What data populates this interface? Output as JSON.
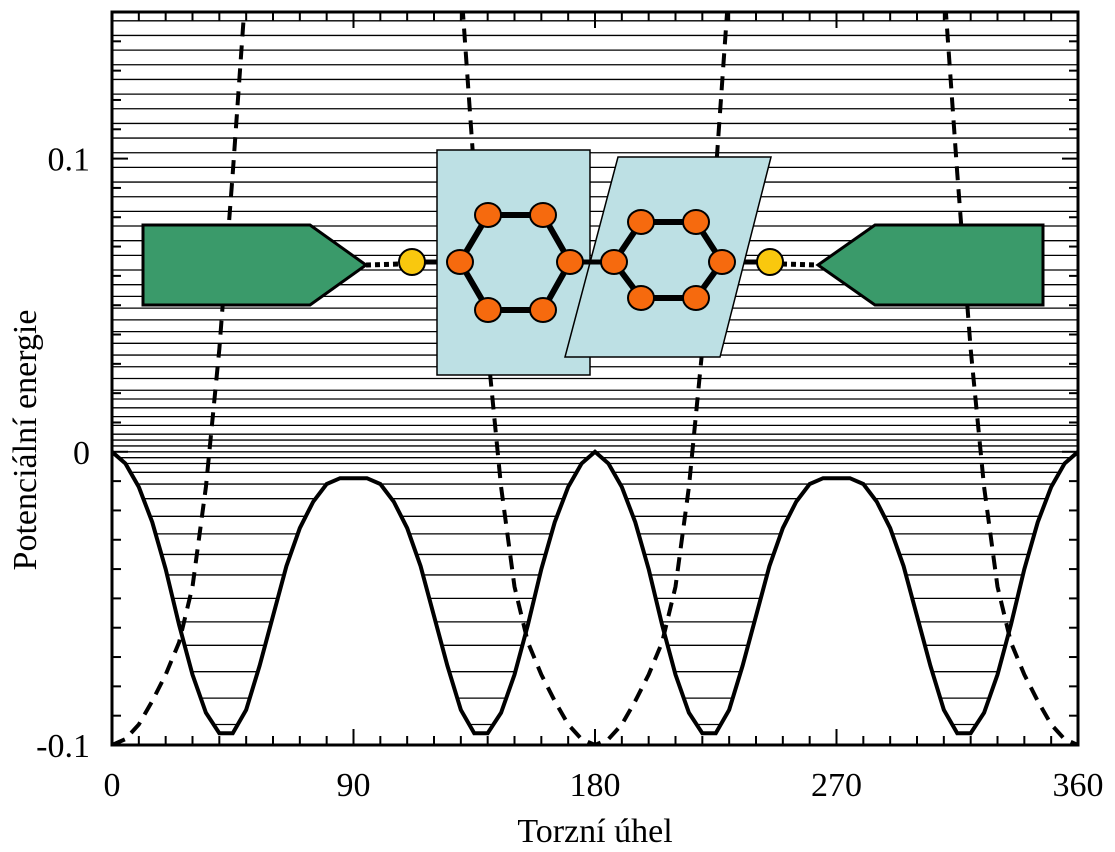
{
  "chart_data": {
    "type": "line",
    "xlabel": "Torzní úhel",
    "ylabel": "Potenciální energie",
    "xlim": [
      0,
      360
    ],
    "ylim": [
      -0.1,
      0.15
    ],
    "xticks": [
      0,
      90,
      180,
      270,
      360
    ],
    "yticks": [
      -0.1,
      0,
      0.1
    ],
    "xminorticks": [
      10,
      20,
      30,
      40,
      50,
      60,
      70,
      80,
      100,
      110,
      120,
      130,
      140,
      150,
      160,
      170,
      190,
      200,
      210,
      220,
      230,
      240,
      250,
      260,
      280,
      290,
      300,
      310,
      320,
      330,
      340,
      350
    ],
    "yminorticks": [
      -0.09,
      -0.08,
      -0.07,
      -0.06,
      -0.05,
      -0.04,
      -0.03,
      -0.02,
      -0.01,
      0.01,
      0.02,
      0.03,
      0.04,
      0.05,
      0.06,
      0.07,
      0.08,
      0.09,
      0.11,
      0.12,
      0.13,
      0.14
    ],
    "x": [
      0,
      5,
      10,
      15,
      20,
      25,
      30,
      35,
      40,
      45,
      50,
      55,
      60,
      65,
      70,
      75,
      80,
      85,
      90,
      95,
      100,
      105,
      110,
      115,
      120,
      125,
      130,
      135,
      140,
      145,
      150,
      155,
      160,
      165,
      170,
      175,
      180,
      185,
      190,
      195,
      200,
      205,
      210,
      215,
      220,
      225,
      230,
      235,
      240,
      245,
      250,
      255,
      260,
      265,
      270,
      275,
      280,
      285,
      290,
      295,
      300,
      305,
      310,
      315,
      320,
      325,
      330,
      335,
      340,
      345,
      350,
      355,
      360
    ],
    "series": [
      {
        "color": "#000000",
        "style": "solid",
        "values": [
          0,
          -0.004,
          -0.012,
          -0.024,
          -0.04,
          -0.059,
          -0.076,
          -0.089,
          -0.096,
          -0.096,
          -0.088,
          -0.073,
          -0.056,
          -0.039,
          -0.026,
          -0.017,
          -0.011,
          -0.009,
          -0.009,
          -0.009,
          -0.011,
          -0.017,
          -0.026,
          -0.039,
          -0.056,
          -0.073,
          -0.088,
          -0.096,
          -0.096,
          -0.089,
          -0.076,
          -0.059,
          -0.04,
          -0.024,
          -0.012,
          -0.004,
          0,
          -0.004,
          -0.012,
          -0.024,
          -0.04,
          -0.059,
          -0.076,
          -0.089,
          -0.096,
          -0.096,
          -0.088,
          -0.073,
          -0.056,
          -0.039,
          -0.026,
          -0.017,
          -0.011,
          -0.009,
          -0.009,
          -0.009,
          -0.011,
          -0.017,
          -0.026,
          -0.039,
          -0.056,
          -0.073,
          -0.088,
          -0.096,
          -0.096,
          -0.089,
          -0.076,
          -0.059,
          -0.04,
          -0.024,
          -0.012,
          -0.004,
          0
        ]
      },
      {
        "color": "#000000",
        "style": "dashed",
        "values": [
          -0.1,
          -0.098,
          -0.093,
          -0.085,
          -0.076,
          -0.065,
          -0.046,
          -0.012,
          0.035,
          0.095,
          0.16,
          null,
          null,
          null,
          null,
          null,
          null,
          null,
          null,
          null,
          null,
          null,
          null,
          null,
          null,
          null,
          0.16,
          0.095,
          0.035,
          -0.012,
          -0.046,
          -0.065,
          -0.076,
          -0.085,
          -0.093,
          -0.098,
          -0.1,
          -0.098,
          -0.093,
          -0.085,
          -0.076,
          -0.065,
          -0.046,
          -0.012,
          0.035,
          0.095,
          0.16,
          null,
          null,
          null,
          null,
          null,
          null,
          null,
          null,
          null,
          null,
          null,
          null,
          null,
          null,
          null,
          0.16,
          0.095,
          0.035,
          -0.012,
          -0.046,
          -0.065,
          -0.076,
          -0.085,
          -0.093,
          -0.098,
          -0.1
        ]
      }
    ],
    "levels": [
      -0.093,
      -0.084,
      -0.075,
      -0.066,
      -0.058,
      -0.05,
      -0.042,
      -0.035,
      -0.028,
      -0.022,
      -0.016,
      -0.011,
      -0.007,
      -0.004,
      -0.002,
      0,
      0.002,
      0.004,
      0.006,
      0.009,
      0.012,
      0.015,
      0.018,
      0.021,
      0.025,
      0.029,
      0.033,
      0.037,
      0.041,
      0.045,
      0.049,
      0.053,
      0.057,
      0.062,
      0.067,
      0.072,
      0.077,
      0.082,
      0.087,
      0.092,
      0.097,
      0.102,
      0.107,
      0.112,
      0.117,
      0.122,
      0.127,
      0.132,
      0.137,
      0.142,
      0.147
    ]
  }
}
